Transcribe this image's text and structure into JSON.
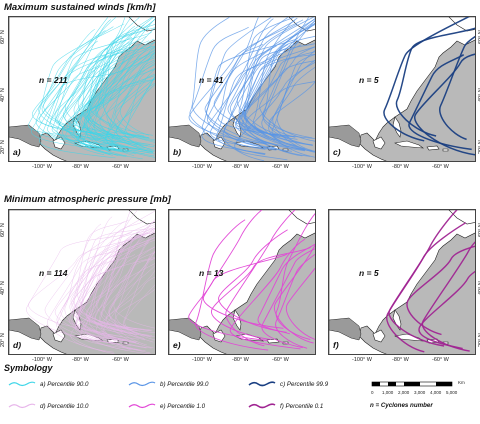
{
  "titles": {
    "winds": "Maximum sustained winds [km/h]",
    "pressure": "Minimum atmospheric pressure [mb]"
  },
  "axes": {
    "lat": [
      "60° N",
      "40° N",
      "20° N"
    ],
    "lon": [
      "-100° W",
      "-80° W",
      "-60° W"
    ]
  },
  "panels": [
    {
      "id": "a",
      "letter": "a)",
      "n_label": "n = 211",
      "color": "#3fd6e8",
      "tracks": 211,
      "shown": 70,
      "width": 0.55
    },
    {
      "id": "b",
      "letter": "b)",
      "n_label": "n = 41",
      "color": "#5a95e6",
      "tracks": 41,
      "shown": 41,
      "width": 0.8
    },
    {
      "id": "c",
      "letter": "c)",
      "n_label": "n = 5",
      "color": "#1a3f82",
      "tracks": 5,
      "shown": 5,
      "width": 1.5
    },
    {
      "id": "d",
      "letter": "d)",
      "n_label": "n = 114",
      "color": "#e7b5ea",
      "tracks": 114,
      "shown": 55,
      "width": 0.5
    },
    {
      "id": "e",
      "letter": "e)",
      "n_label": "n = 13",
      "color": "#e246d6",
      "tracks": 13,
      "shown": 13,
      "width": 0.9
    },
    {
      "id": "f",
      "letter": "f)",
      "n_label": "n = 5",
      "color": "#a02592",
      "tracks": 5,
      "shown": 5,
      "width": 1.4
    }
  ],
  "symbology": {
    "title": "Symbology",
    "items": [
      {
        "label": "a) Percentile 90.0",
        "color": "#3fd6e8"
      },
      {
        "label": "b) Percentile 99.0",
        "color": "#5a95e6"
      },
      {
        "label": "c) Percentile 99.9",
        "color": "#1a3f82"
      },
      {
        "label": "d) Percentile 10.0",
        "color": "#e7b5ea"
      },
      {
        "label": "e) Percentile 1.0",
        "color": "#e246d6"
      },
      {
        "label": "f) Percentile 0.1",
        "color": "#a02592"
      }
    ],
    "note": "n = Cyclones number"
  },
  "scalebar": {
    "labels": [
      "0",
      "1,000",
      "2,000",
      "3,000",
      "4,000",
      "5,000"
    ],
    "unit": "Km"
  }
}
